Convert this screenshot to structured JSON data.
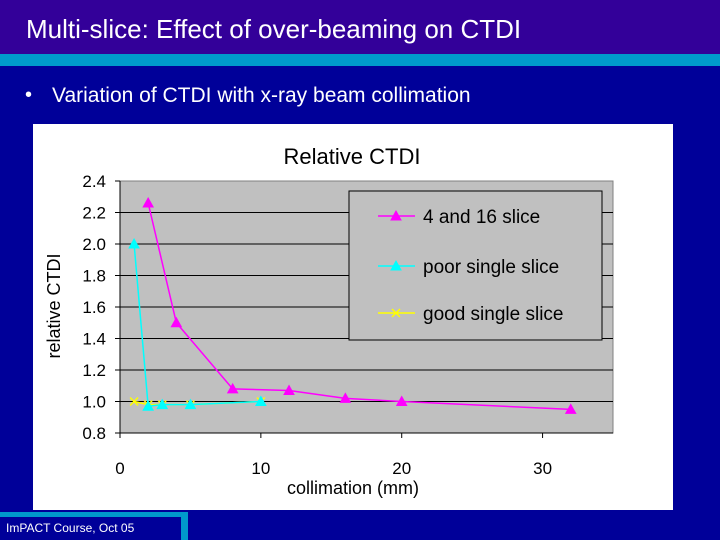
{
  "slide": {
    "title": "Multi-slice: Effect of over-beaming on CTDI",
    "bullet": "Variation of CTDI with x-ray beam collimation",
    "footer": "ImPACT Course, Oct 05"
  },
  "colors": {
    "background": "#000099",
    "title_bar": "#330099",
    "accent": "#0099cc",
    "plot_area": "#c0c0c0"
  },
  "chart_data": {
    "type": "line",
    "title": "Relative CTDI",
    "xlabel": "collimation (mm)",
    "ylabel": "relative CTDI",
    "xlim": [
      0,
      35
    ],
    "ylim": [
      0.8,
      2.4
    ],
    "xticks": [
      0,
      10,
      20,
      30
    ],
    "yticks": [
      0.8,
      1.0,
      1.2,
      1.4,
      1.6,
      1.8,
      2.0,
      2.2,
      2.4
    ],
    "yticks_labels": [
      "0.8",
      "1.0",
      "1.2",
      "1.4",
      "1.6",
      "1.8",
      "2.0",
      "2.2",
      "2.4"
    ],
    "grid": "horizontal",
    "legend_position": "top-right",
    "series": [
      {
        "name": "4 and 16 slice",
        "color": "#ff00ff",
        "marker": "triangle",
        "x": [
          2,
          4,
          8,
          12,
          16,
          20,
          32
        ],
        "y": [
          2.26,
          1.5,
          1.08,
          1.07,
          1.02,
          1.0,
          0.95
        ]
      },
      {
        "name": "poor single slice",
        "color": "#00ffff",
        "marker": "triangle",
        "x": [
          1,
          2,
          3,
          5,
          10
        ],
        "y": [
          2.0,
          0.97,
          0.98,
          0.98,
          1.0
        ]
      },
      {
        "name": "good single slice",
        "color": "#ffff00",
        "marker": "x",
        "x": [
          1,
          2,
          3,
          5,
          10
        ],
        "y": [
          1.0,
          0.98,
          0.98,
          0.98,
          1.0
        ]
      }
    ]
  }
}
